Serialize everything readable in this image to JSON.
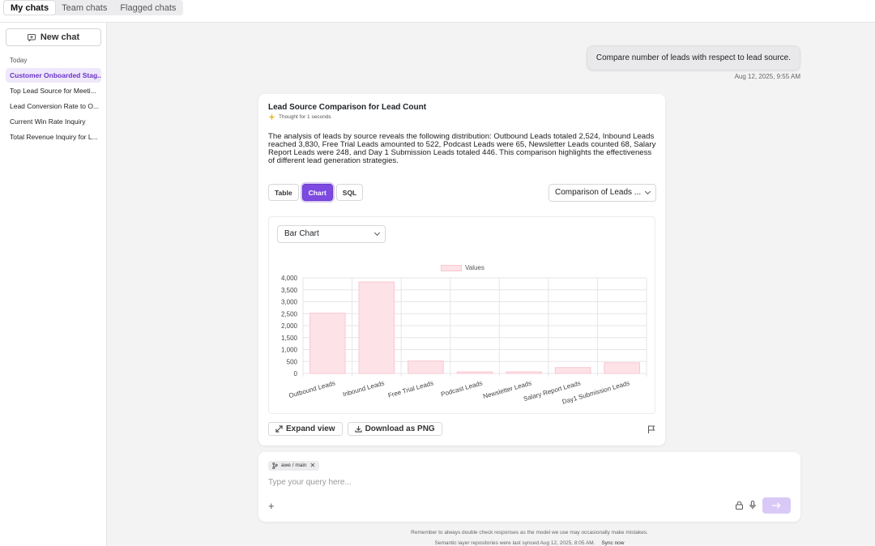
{
  "tabs": [
    "My chats",
    "Team chats",
    "Flagged chats"
  ],
  "sidebar": {
    "new_chat": "New chat",
    "section": "Today",
    "items": [
      "Customer Onboarded Stag...",
      "Top Lead Source for Meeti...",
      "Lead Conversion Rate to O...",
      "Current Win Rate Inquiry",
      "Total Revenue Inquiry for L..."
    ]
  },
  "conversation": {
    "user_message": "Compare number of leads with respect to lead source.",
    "user_time": "Aug 12, 2025, 9:55 AM",
    "response_title": "Lead Source Comparison for Lead Count",
    "thought": "Thought for 1 seconds",
    "answer": "The analysis of leads by source reveals the following distribution: Outbound Leads totaled 2,524, Inbound Leads reached 3,830, Free Trial Leads amounted to 522, Podcast Leads were 65, Newsletter Leads counted 68, Salary Report Leads were 248, and Day 1 Submission Leads totaled 446. This comparison highlights the effectiveness of different lead generation strategies.",
    "view_tabs": [
      "Table",
      "Chart",
      "SQL"
    ],
    "active_view": "Chart",
    "comparison_select": "Comparison of Leads ...",
    "chart_type_select": "Bar Chart",
    "expand_label": "Expand view",
    "download_label": "Download as PNG"
  },
  "chart_data": {
    "type": "bar",
    "categories": [
      "Outbound Leads",
      "Inbound Leads",
      "Free Trial Leads",
      "Podcast Leads",
      "Newsletter Leads",
      "Salary Report Leads",
      "Day1 Submission Leads"
    ],
    "series": [
      {
        "name": "Values",
        "values": [
          2524,
          3830,
          522,
          65,
          68,
          248,
          446
        ]
      }
    ],
    "yticks": [
      "0",
      "500",
      "1,000",
      "1,500",
      "2,000",
      "2,500",
      "3,000",
      "3,500",
      "4,000"
    ],
    "ylim": [
      0,
      4000
    ],
    "legend": "top-center",
    "grid": true,
    "bar_color": "#fde2e7",
    "bar_edge": "#f8c9d2"
  },
  "composer": {
    "chip": "awe / main",
    "placeholder": "Type your query here..."
  },
  "footer": {
    "note": "Remember to always double check responses as the model we use may occasionally make mistakes.",
    "sync_note": "Semantic layer repositories were last synced Aug 12, 2025, 8:05 AM.",
    "sync_link": "Sync now"
  },
  "colors": {
    "accent": "#7c4ae0",
    "accent_light": "#efe8fb"
  }
}
